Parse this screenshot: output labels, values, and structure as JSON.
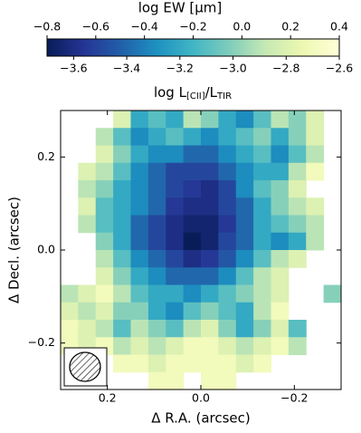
{
  "chart_data": {
    "type": "heatmap",
    "xlabel": "Δ R.A. (arcsec)",
    "ylabel": "Δ Decl. (arcsec)",
    "xlim": [
      0.3,
      -0.3
    ],
    "ylim": [
      -0.3,
      0.3
    ],
    "xticks": [
      0.2,
      {
        "value": 0,
        "label": "0.0"
      },
      {
        "value": -0.2,
        "label": "−0.2"
      }
    ],
    "yticks": [
      {
        "value": -0.2,
        "label": "−0.2"
      },
      {
        "value": 0,
        "label": "0.0"
      },
      0.2
    ],
    "colormap": [
      "#081d58",
      "#253494",
      "#225ea8",
      "#1d91c0",
      "#41b6c4",
      "#7fcdbb",
      "#c7e9b4",
      "#edf8b1",
      "#ffffd9"
    ],
    "colorbar": {
      "label": [
        "log L",
        "[CII]",
        "/L",
        "TIR"
      ],
      "lim": [
        -3.7,
        -2.6
      ],
      "ticks": [
        {
          "value": -3.6,
          "label": "−3.6"
        },
        {
          "value": -3.4,
          "label": "−3.4"
        },
        {
          "value": -3.2,
          "label": "−3.2"
        },
        {
          "value": -3.0,
          "label": "−3.0"
        },
        {
          "value": -2.8,
          "label": "−2.8"
        },
        {
          "value": -2.6,
          "label": "−2.6"
        }
      ],
      "top_label": "log EW [μm]",
      "top_lim": [
        -0.8,
        0.4
      ],
      "top_ticks": [
        {
          "value": -0.8,
          "label": "−0.8"
        },
        {
          "value": -0.6,
          "label": "−0.6"
        },
        {
          "value": -0.4,
          "label": "−0.4"
        },
        {
          "value": -0.2,
          "label": "−0.2"
        },
        {
          "value": 0,
          "label": "0.0"
        },
        0.2,
        0.4
      ]
    },
    "z": [
      [
        null,
        null,
        null,
        -2.8,
        -3.2,
        -3.1,
        -3.2,
        -2.9,
        -3.0,
        -3.2,
        -3.3,
        -3.1,
        -2.9,
        -3.0,
        -2.8,
        null
      ],
      [
        null,
        null,
        -2.9,
        -3.1,
        -3.3,
        -3.2,
        -3.1,
        -3.2,
        -3.3,
        -3.2,
        -3.1,
        -3.0,
        -3.2,
        -3.0,
        -2.8,
        null
      ],
      [
        null,
        null,
        -2.8,
        -3.0,
        -3.2,
        -3.3,
        -3.3,
        -3.4,
        -3.4,
        -3.3,
        -3.2,
        -3.1,
        -3.3,
        -3.1,
        -2.9,
        null
      ],
      [
        null,
        -2.8,
        -2.9,
        -3.1,
        -3.3,
        -3.4,
        -3.5,
        -3.5,
        -3.5,
        -3.4,
        -3.3,
        -3.2,
        -3.2,
        -2.9,
        -2.7,
        null
      ],
      [
        null,
        -2.9,
        -3.0,
        -3.2,
        -3.3,
        -3.4,
        -3.5,
        -3.55,
        -3.6,
        -3.5,
        -3.3,
        -3.1,
        -3.0,
        -2.8,
        null,
        null
      ],
      [
        null,
        -2.8,
        -3.1,
        -3.2,
        -3.3,
        -3.4,
        -3.55,
        -3.6,
        -3.6,
        -3.5,
        -3.4,
        -3.2,
        -3.0,
        -2.9,
        -2.8,
        null
      ],
      [
        null,
        -2.9,
        -3.1,
        -3.2,
        -3.4,
        -3.5,
        -3.6,
        -3.65,
        -3.65,
        -3.55,
        -3.4,
        -3.2,
        -3.1,
        -3.0,
        -2.9,
        null
      ],
      [
        null,
        null,
        -3.0,
        -3.2,
        -3.4,
        -3.5,
        -3.6,
        -3.7,
        -3.65,
        -3.5,
        -3.4,
        -3.2,
        -3.3,
        -3.2,
        -2.9,
        null
      ],
      [
        null,
        null,
        -2.9,
        -3.1,
        -3.3,
        -3.4,
        -3.5,
        -3.6,
        -3.55,
        -3.45,
        -3.3,
        -3.1,
        -2.9,
        -2.8,
        null,
        null
      ],
      [
        null,
        null,
        -2.8,
        -3.0,
        -3.2,
        -3.3,
        -3.4,
        -3.4,
        -3.4,
        -3.3,
        -3.1,
        -2.9,
        -2.8,
        null,
        null,
        null
      ],
      [
        -2.9,
        -2.8,
        -2.7,
        -2.9,
        -3.1,
        -3.2,
        -3.2,
        -3.3,
        -3.2,
        -3.1,
        -3.0,
        -2.9,
        -2.8,
        null,
        null,
        -3.0
      ],
      [
        -2.8,
        -2.9,
        -2.8,
        -3.0,
        -3.0,
        -3.2,
        -3.3,
        -3.1,
        -3.0,
        -3.1,
        -3.2,
        -2.9,
        -2.7,
        null,
        null,
        null
      ],
      [
        -2.7,
        -2.8,
        -2.9,
        -3.1,
        -2.9,
        -3.0,
        -3.1,
        -2.9,
        -2.8,
        -3.0,
        -3.2,
        -3.0,
        -2.8,
        -3.1,
        null,
        null
      ],
      [
        -2.7,
        -2.8,
        -2.7,
        -2.9,
        -2.8,
        -2.9,
        -2.8,
        -2.7,
        -2.7,
        -2.8,
        -2.9,
        -2.8,
        -2.7,
        -2.9,
        null,
        null
      ],
      [
        null,
        null,
        null,
        -2.7,
        -2.7,
        -2.8,
        -2.7,
        -2.7,
        -2.7,
        -2.7,
        -2.8,
        -2.7,
        null,
        null,
        null,
        null
      ],
      [
        null,
        null,
        null,
        null,
        null,
        -2.7,
        -2.7,
        null,
        -2.7,
        -2.7,
        null,
        null,
        null,
        null,
        null,
        null
      ]
    ]
  }
}
